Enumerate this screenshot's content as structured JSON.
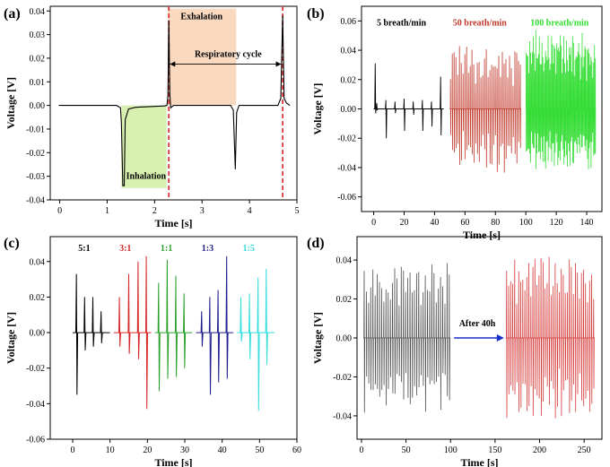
{
  "chart_data": [
    {
      "panel": "(a)",
      "type": "line",
      "xlabel": "Time [s]",
      "ylabel": "Voltage [V]",
      "xlim": [
        -0.2,
        5.0
      ],
      "ylim": [
        -0.04,
        0.042
      ],
      "xticks": [
        0,
        1,
        2,
        3,
        4,
        5
      ],
      "yticks": [
        -0.04,
        -0.03,
        -0.02,
        -0.01,
        0.0,
        0.01,
        0.02,
        0.03,
        0.04
      ],
      "series": [
        {
          "color": "#000000",
          "points": [
            [
              -0.02,
              0.0
            ],
            [
              1.2,
              0.0
            ],
            [
              1.28,
              -0.001
            ],
            [
              1.3,
              -0.007
            ],
            [
              1.33,
              -0.034
            ],
            [
              1.36,
              -0.034
            ],
            [
              1.38,
              -0.006
            ],
            [
              1.45,
              -0.0015
            ],
            [
              1.6,
              -0.0008
            ],
            [
              2.0,
              -0.0004
            ],
            [
              2.2,
              -0.0002
            ],
            [
              2.26,
              0.0
            ],
            [
              2.28,
              0.004
            ],
            [
              2.3,
              0.036
            ],
            [
              2.32,
              0.005
            ],
            [
              2.34,
              -0.001
            ],
            [
              2.4,
              0.0
            ],
            [
              3.6,
              0.0
            ],
            [
              3.66,
              -0.002
            ],
            [
              3.7,
              -0.027
            ],
            [
              3.73,
              -0.003
            ],
            [
              3.78,
              0.0
            ],
            [
              4.6,
              0.0
            ],
            [
              4.66,
              0.003
            ],
            [
              4.7,
              0.038
            ],
            [
              4.73,
              0.003
            ],
            [
              4.78,
              0.001
            ],
            [
              4.85,
              0.0
            ]
          ]
        }
      ],
      "annotations": {
        "inhalation": "Inhalation",
        "exhalation": "Exhalation",
        "respiratory_cycle": "Respiratory cycle"
      },
      "colors": {
        "inhalation_fill": "#d7f0b0",
        "exhalation_fill": "#f9d9c0",
        "dashed_line": "#d9383a"
      }
    },
    {
      "panel": "(b)",
      "type": "line",
      "xlabel": "Time [s]",
      "ylabel": "Voltage [V]",
      "xlim": [
        -8,
        150
      ],
      "ylim": [
        -0.07,
        0.07
      ],
      "xticks": [
        0,
        20,
        40,
        60,
        80,
        100,
        120,
        140
      ],
      "yticks": [
        -0.06,
        -0.04,
        -0.02,
        0.0,
        0.02,
        0.04,
        0.06
      ],
      "series": [
        {
          "name": "5 breath/min",
          "color": "#000000",
          "x_range": [
            0,
            46
          ],
          "count": 8,
          "amp_max": 0.031,
          "amp_min": 0.02
        },
        {
          "name": "50 breath/min",
          "color": "#c0392b",
          "x_range": [
            50,
            97
          ],
          "count": 40,
          "amp_max": 0.045,
          "amp_min": 0.045
        },
        {
          "name": "100 breath/min",
          "color": "#33dd33",
          "x_range": [
            100,
            146
          ],
          "count": 80,
          "amp_max": 0.057,
          "amp_min": 0.043
        }
      ]
    },
    {
      "panel": "(c)",
      "type": "line",
      "xlabel": "Time [s]",
      "ylabel": "Voltage [V]",
      "xlim": [
        -6,
        60
      ],
      "ylim": [
        -0.06,
        0.054
      ],
      "xticks": [
        0,
        10,
        20,
        30,
        40,
        50,
        60
      ],
      "yticks": [
        -0.06,
        -0.04,
        -0.02,
        0.0,
        0.02,
        0.04
      ],
      "series": [
        {
          "name": "5:1",
          "color": "#000000",
          "x_range": [
            0,
            10
          ],
          "peaks": [
            [
              1,
              0.033,
              -0.035
            ],
            [
              3.2,
              0.02,
              -0.01
            ],
            [
              5.4,
              0.02,
              -0.008
            ],
            [
              7.6,
              0.012,
              -0.006
            ]
          ]
        },
        {
          "name": "3:1",
          "color": "#d62728",
          "x_range": [
            11,
            21
          ],
          "peaks": [
            [
              12.5,
              0.02,
              -0.008
            ],
            [
              15,
              0.033,
              -0.012
            ],
            [
              17.5,
              0.04,
              -0.015
            ],
            [
              19.7,
              0.043,
              -0.043
            ]
          ]
        },
        {
          "name": "1:1",
          "color": "#2ca02c",
          "x_range": [
            22,
            32
          ],
          "peaks": [
            [
              23,
              0.028,
              -0.033
            ],
            [
              25.3,
              0.041,
              -0.026
            ],
            [
              27.6,
              0.032,
              -0.025
            ],
            [
              29.8,
              0.022,
              -0.02
            ]
          ]
        },
        {
          "name": "1:3",
          "color": "#1f1f8f",
          "x_range": [
            33,
            43
          ],
          "peaks": [
            [
              34.5,
              0.012,
              -0.008
            ],
            [
              36.7,
              0.02,
              -0.035
            ],
            [
              38.9,
              0.024,
              -0.028
            ],
            [
              41.2,
              0.043,
              -0.026
            ]
          ]
        },
        {
          "name": "1:5",
          "color": "#33dddd",
          "x_range": [
            44,
            54
          ],
          "peaks": [
            [
              45,
              0.02,
              -0.005
            ],
            [
              47.3,
              0.022,
              -0.015
            ],
            [
              49.6,
              0.031,
              -0.044
            ],
            [
              51.8,
              0.036,
              -0.018
            ]
          ]
        }
      ]
    },
    {
      "panel": "(d)",
      "type": "line",
      "xlabel": "Time [s]",
      "ylabel": "Voltage [V]",
      "xlim": [
        -5,
        270
      ],
      "ylim": [
        -0.052,
        0.052
      ],
      "xticks": [
        0,
        50,
        100,
        150,
        200,
        250
      ],
      "yticks": [
        -0.04,
        -0.02,
        0.0,
        0.02,
        0.04
      ],
      "arrow_label": "After 40h",
      "series": [
        {
          "color": "#4d4d4d",
          "x_range": [
            2,
            100
          ],
          "count": 40,
          "amp_max": 0.04,
          "amp_min": 0.04
        },
        {
          "color": "#d63b3b",
          "x_range": [
            162,
            262
          ],
          "count": 44,
          "amp_max": 0.046,
          "amp_min": 0.044
        }
      ],
      "colors": {
        "arrow": "#1a2ec8"
      }
    }
  ]
}
